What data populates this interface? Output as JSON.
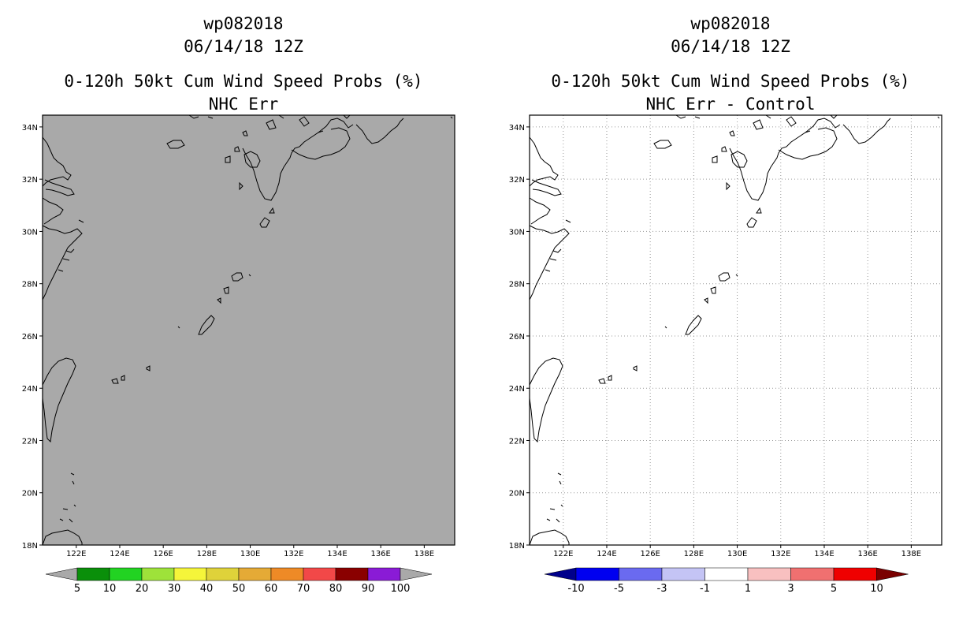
{
  "panels": [
    {
      "id": "left",
      "storm_id": "wp082018",
      "datetime": "06/14/18 12Z",
      "product": "0-120h 50kt Cum Wind Speed Probs (%)",
      "subtitle": "NHC Err",
      "fill_color": "#a9a9a9",
      "gridlines": false,
      "colorbar": {
        "labels": [
          "5",
          "10",
          "20",
          "30",
          "40",
          "50",
          "60",
          "70",
          "80",
          "90",
          "100"
        ],
        "colors": [
          "#a9a9a9",
          "#0a8f0a",
          "#22d322",
          "#9ee23a",
          "#f5f53a",
          "#dfd23a",
          "#e5aa36",
          "#ee8a26",
          "#f24848",
          "#8a0000",
          "#8a1bd6",
          "#a9a9a9"
        ]
      }
    },
    {
      "id": "right",
      "storm_id": "wp082018",
      "datetime": "06/14/18 12Z",
      "product": "0-120h 50kt Cum Wind Speed Probs (%)",
      "subtitle": "NHC Err - Control",
      "fill_color": "#ffffff",
      "gridlines": true,
      "colorbar": {
        "labels": [
          "-10",
          "-5",
          "-3",
          "-1",
          "1",
          "3",
          "5",
          "10"
        ],
        "colors": [
          "#00008b",
          "#0000f0",
          "#6a6af0",
          "#c4c4f5",
          "#ffffff",
          "#f8c0c0",
          "#f07070",
          "#ef0000",
          "#7a0000"
        ]
      }
    }
  ],
  "axes": {
    "lat_labels": [
      "34N",
      "32N",
      "30N",
      "28N",
      "26N",
      "24N",
      "22N",
      "20N",
      "18N"
    ],
    "lon_labels": [
      "122E",
      "124E",
      "126E",
      "128E",
      "130E",
      "132E",
      "134E",
      "136E",
      "138E"
    ]
  }
}
